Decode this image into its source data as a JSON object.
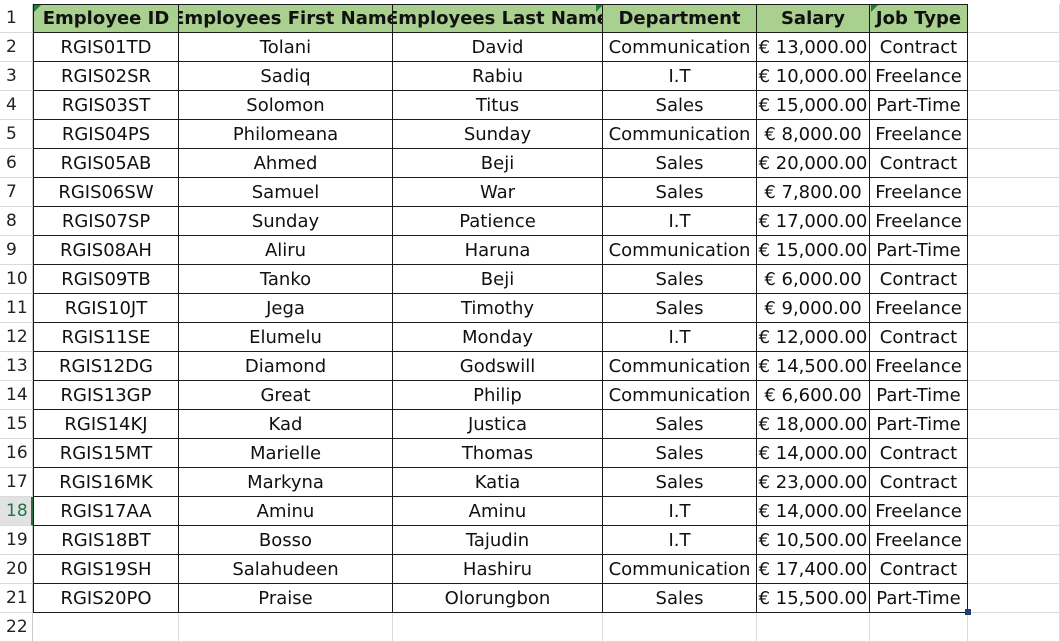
{
  "selected_row": 18,
  "row_numbers": [
    "1",
    "2",
    "3",
    "4",
    "5",
    "6",
    "7",
    "8",
    "9",
    "10",
    "11",
    "12",
    "13",
    "14",
    "15",
    "16",
    "17",
    "18",
    "19",
    "20",
    "21",
    "22"
  ],
  "columns": [
    "Employee ID",
    "Employees First Name",
    "Employees Last Name",
    "Department",
    "Salary",
    "Job Type"
  ],
  "rows": [
    [
      "RGIS01TD",
      "Tolani",
      "David",
      "Communication",
      "€ 13,000.00",
      "Contract"
    ],
    [
      "RGIS02SR",
      "Sadiq",
      "Rabiu",
      "I.T",
      "€ 10,000.00",
      "Freelance"
    ],
    [
      "RGIS03ST",
      "Solomon",
      "Titus",
      "Sales",
      "€ 15,000.00",
      "Part-Time"
    ],
    [
      "RGIS04PS",
      "Philomeana",
      "Sunday",
      "Communication",
      "€ 8,000.00",
      "Freelance"
    ],
    [
      "RGIS05AB",
      "Ahmed",
      "Beji",
      "Sales",
      "€ 20,000.00",
      "Contract"
    ],
    [
      "RGIS06SW",
      "Samuel",
      "War",
      "Sales",
      "€ 7,800.00",
      "Freelance"
    ],
    [
      "RGIS07SP",
      "Sunday",
      "Patience",
      "I.T",
      "€ 17,000.00",
      "Freelance"
    ],
    [
      "RGIS08AH",
      "Aliru",
      "Haruna",
      "Communication",
      "€ 15,000.00",
      "Part-Time"
    ],
    [
      "RGIS09TB",
      "Tanko",
      "Beji",
      "Sales",
      "€ 6,000.00",
      "Contract"
    ],
    [
      "RGIS10JT",
      "Jega",
      "Timothy",
      "Sales",
      "€ 9,000.00",
      "Freelance"
    ],
    [
      "RGIS11SE",
      "Elumelu",
      "Monday",
      "I.T",
      "€ 12,000.00",
      "Contract"
    ],
    [
      "RGIS12DG",
      "Diamond",
      "Godswill",
      "Communication",
      "€ 14,500.00",
      "Freelance"
    ],
    [
      "RGIS13GP",
      "Great",
      "Philip",
      "Communication",
      "€ 6,600.00",
      "Part-Time"
    ],
    [
      "RGIS14KJ",
      "Kad",
      "Justica",
      "Sales",
      "€ 18,000.00",
      "Part-Time"
    ],
    [
      "RGIS15MT",
      "Marielle",
      "Thomas",
      "Sales",
      "€ 14,000.00",
      "Contract"
    ],
    [
      "RGIS16MK",
      "Markyna",
      "Katia",
      "Sales",
      "€ 23,000.00",
      "Contract"
    ],
    [
      "RGIS17AA",
      "Aminu",
      "Aminu",
      "I.T",
      "€ 14,000.00",
      "Freelance"
    ],
    [
      "RGIS18BT",
      "Bosso",
      "Tajudin",
      "I.T",
      "€ 10,500.00",
      "Freelance"
    ],
    [
      "RGIS19SH",
      "Salahudeen",
      "Hashiru",
      "Communication",
      "€ 17,400.00",
      "Contract"
    ],
    [
      "RGIS20PO",
      "Praise",
      "Olorungbon",
      "Sales",
      "€ 15,500.00",
      "Part-Time"
    ]
  ],
  "colors": {
    "header_fill": "#a9d08e",
    "grid": "#1a1a1a",
    "selection": "#217346",
    "indicator": "#1e7e3e"
  }
}
